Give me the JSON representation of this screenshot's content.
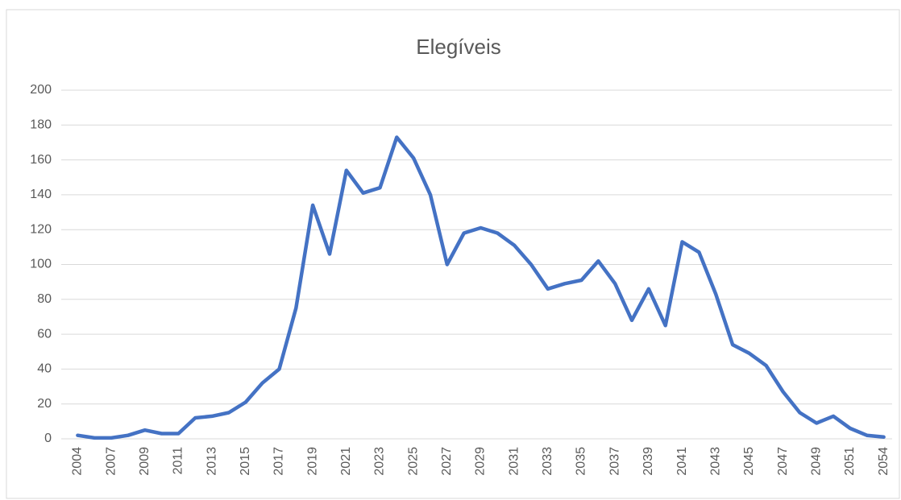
{
  "chart_data": {
    "type": "line",
    "title": "Elegíveis",
    "categories": [
      "2004",
      null,
      "2007",
      null,
      "2009",
      null,
      "2011",
      null,
      "2013",
      null,
      "2015",
      null,
      "2017",
      null,
      "2019",
      null,
      "2021",
      null,
      "2023",
      null,
      "2025",
      null,
      "2027",
      null,
      "2029",
      null,
      "2031",
      null,
      "2033",
      null,
      "2035",
      null,
      "2037",
      null,
      "2039",
      null,
      "2041",
      null,
      "2043",
      null,
      "2045",
      null,
      "2047",
      null,
      "2049",
      null,
      "2051",
      null,
      "2054"
    ],
    "series": [
      {
        "name": "Elegíveis",
        "color": "#4472c4",
        "values": [
          2,
          0.5,
          0.5,
          2,
          5,
          3,
          3,
          12,
          13,
          15,
          21,
          32,
          40,
          75,
          134,
          106,
          154,
          141,
          144,
          173,
          161,
          140,
          100,
          118,
          121,
          118,
          111,
          100,
          86,
          89,
          91,
          102,
          89,
          68,
          86,
          65,
          113,
          107,
          83,
          54,
          49,
          42,
          27,
          15,
          9,
          13,
          6,
          2,
          1
        ]
      }
    ],
    "ylim": [
      0,
      200
    ],
    "yticks": [
      0,
      20,
      40,
      60,
      80,
      100,
      120,
      140,
      160,
      180,
      200
    ],
    "grid": true
  }
}
